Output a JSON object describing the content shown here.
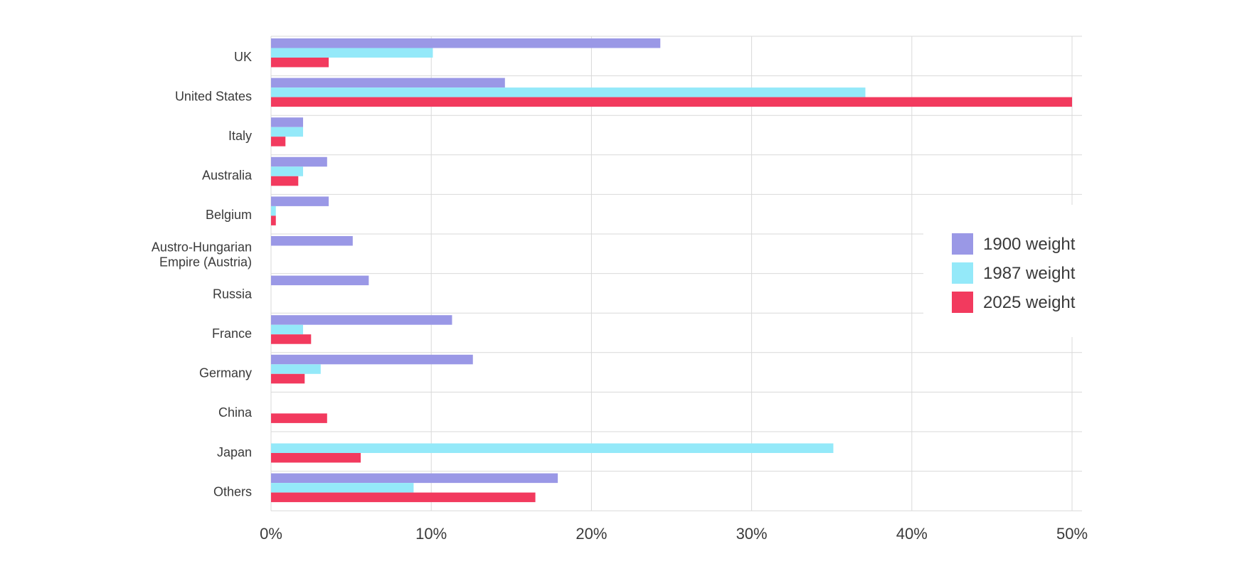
{
  "chart_data": {
    "type": "bar",
    "orientation": "horizontal",
    "title": "",
    "xlabel": "",
    "ylabel": "",
    "xlim": [
      0,
      50
    ],
    "x_ticks": [
      0,
      10,
      20,
      30,
      40,
      50
    ],
    "x_tick_labels": [
      "0%",
      "10%",
      "20%",
      "30%",
      "40%",
      "50%"
    ],
    "grid": true,
    "legend_position": "right",
    "categories": [
      [
        "UK"
      ],
      [
        "United States"
      ],
      [
        "Italy"
      ],
      [
        "Australia"
      ],
      [
        "Belgium"
      ],
      [
        "Austro-Hungarian",
        "Empire (Austria)"
      ],
      [
        "Russia"
      ],
      [
        "France"
      ],
      [
        "Germany"
      ],
      [
        "China"
      ],
      [
        "Japan"
      ],
      [
        "Others"
      ]
    ],
    "series": [
      {
        "name": "1900 weight",
        "color": "#9a98e6",
        "values": [
          24.3,
          14.6,
          2.0,
          3.5,
          3.6,
          5.1,
          6.1,
          11.3,
          12.6,
          0,
          0,
          17.9
        ]
      },
      {
        "name": "1987 weight",
        "color": "#94e9f9",
        "values": [
          10.1,
          37.1,
          2.0,
          2.0,
          0.3,
          0,
          0,
          2.0,
          3.1,
          0,
          35.1,
          8.9
        ]
      },
      {
        "name": "2025 weight",
        "color": "#f23a5e",
        "values": [
          3.6,
          50.0,
          0.9,
          1.7,
          0.3,
          0,
          0,
          2.5,
          2.1,
          3.5,
          5.6,
          16.5
        ]
      }
    ]
  }
}
